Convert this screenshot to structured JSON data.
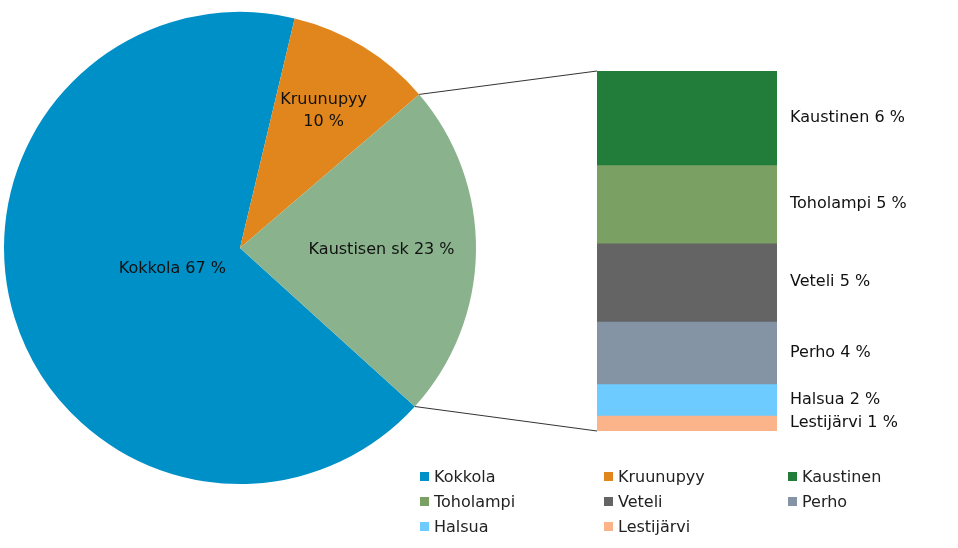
{
  "chart_data": [
    {
      "type": "pie",
      "categories": [
        "Kokkola",
        "Kruunupyy",
        "Kaustisen sk"
      ],
      "values": [
        67,
        10,
        23
      ],
      "value_labels": [
        "Kokkola 67 %",
        "Kruunupyy 10 %",
        "Kaustisen sk 23 %"
      ],
      "colors": [
        "#0090C8",
        "#E0861C",
        "#8AB38D"
      ],
      "data_labels": true,
      "legend": "bottom-right"
    },
    {
      "type": "bar",
      "stacked": true,
      "categories": [
        null
      ],
      "ylim": [
        0,
        23
      ],
      "tick_labels": false,
      "data_labels": true,
      "legend": "bottom-right",
      "series": [
        {
          "name": "Kaustinen",
          "color": "#237D3A",
          "values": [
            6
          ],
          "value_labels": [
            "Kaustinen 6 %"
          ]
        },
        {
          "name": "Toholampi",
          "color": "#7BA064",
          "values": [
            5
          ],
          "value_labels": [
            "Toholampi 5 %"
          ]
        },
        {
          "name": "Veteli",
          "color": "#646464",
          "values": [
            5
          ],
          "value_labels": [
            "Veteli 5 %"
          ]
        },
        {
          "name": "Perho",
          "color": "#8494A4",
          "values": [
            4
          ],
          "value_labels": [
            "Perho 4 %"
          ]
        },
        {
          "name": "Halsua",
          "color": "#6DCBFF",
          "values": [
            2
          ],
          "value_labels": [
            "Halsua 2 %"
          ]
        },
        {
          "name": "Lestijärvi",
          "color": "#FBB38A",
          "values": [
            1
          ],
          "value_labels": [
            "Lestijärvi 1 %"
          ]
        }
      ]
    }
  ]
}
